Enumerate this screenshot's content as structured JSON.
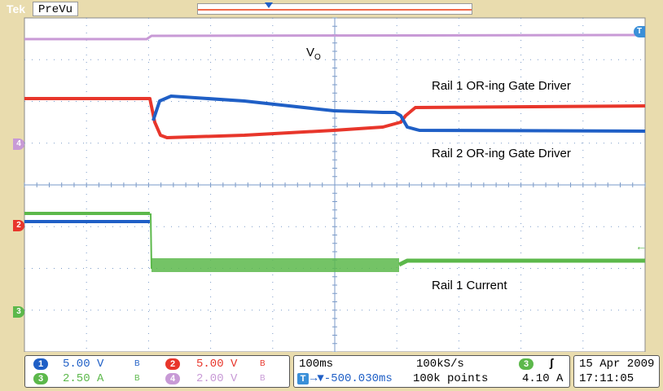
{
  "header": {
    "brand": "Tek",
    "mode": "PreVu"
  },
  "annotations": {
    "vo": "V",
    "vo_sub": "O",
    "rail1_gate": "Rail 1 OR-ing Gate Driver",
    "rail2_gate": "Rail 2 OR-ing Gate Driver",
    "rail1_current": "Rail 1 Current"
  },
  "markers": {
    "trigger": "T",
    "ch4": "4",
    "ch2": "2",
    "ch3": "3"
  },
  "channels": [
    {
      "id": "1",
      "scale": "5.00 V",
      "bw": "B",
      "color": "#1f5fc6"
    },
    {
      "id": "2",
      "scale": "5.00 V",
      "bw": "B",
      "color": "#e8362b"
    },
    {
      "id": "3",
      "scale": "2.50 A",
      "bw": "B",
      "color": "#5cb84b"
    },
    {
      "id": "4",
      "scale": "2.00 V",
      "bw": "B",
      "color": "#c89ad6"
    }
  ],
  "timebase": {
    "scale": "100ms",
    "sample_rate": "100kS/s",
    "position": "→▼-500.030ms",
    "record_length": "100k points"
  },
  "trigger": {
    "channel": "3",
    "slope": "ʃ",
    "level": "4.10 A"
  },
  "datetime": {
    "date": "15 Apr 2009",
    "time": "17:11:05"
  },
  "colors": {
    "ch1": "#1f5fc6",
    "ch2": "#e8362b",
    "ch3": "#5cb84b",
    "ch4": "#c89ad6",
    "graticule": "#7a9ac8",
    "background": "#ffffff"
  }
}
